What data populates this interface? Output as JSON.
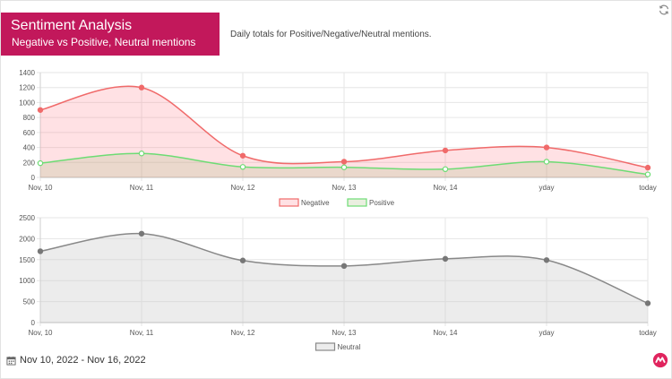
{
  "header": {
    "title": "Sentiment Analysis",
    "subtitle": "Negative vs Positive, Neutral mentions",
    "description": "Daily totals for Positive/Negative/Neutral mentions."
  },
  "footer": {
    "date_range": "Nov 10, 2022 - Nov 16, 2022"
  },
  "icons": {
    "refresh": "refresh-icon",
    "calendar": "calendar-icon",
    "logo": "brand-logo"
  },
  "colors": {
    "title_bg": "#c2185b",
    "negative": "#f06a6a",
    "positive": "#6ddc74",
    "neutral": "#888888"
  },
  "chart_data": [
    {
      "type": "line",
      "categories": [
        "Nov, 10",
        "Nov, 11",
        "Nov, 12",
        "Nov, 13",
        "Nov, 14",
        "yday",
        "today"
      ],
      "series": [
        {
          "name": "Negative",
          "values": [
            900,
            1200,
            290,
            210,
            360,
            400,
            130
          ]
        },
        {
          "name": "Positive",
          "values": [
            190,
            320,
            140,
            135,
            110,
            210,
            40
          ]
        }
      ],
      "ylim": [
        0,
        1400
      ],
      "yticks": [
        0,
        200,
        400,
        600,
        800,
        1000,
        1200,
        1400
      ],
      "grid": true,
      "legend": "bottom",
      "fill": true
    },
    {
      "type": "line",
      "categories": [
        "Nov, 10",
        "Nov, 11",
        "Nov, 12",
        "Nov, 13",
        "Nov, 14",
        "yday",
        "today"
      ],
      "series": [
        {
          "name": "Neutral",
          "values": [
            1700,
            2120,
            1480,
            1350,
            1520,
            1490,
            460
          ]
        }
      ],
      "ylim": [
        0,
        2500
      ],
      "yticks": [
        0,
        500,
        1000,
        1500,
        2000,
        2500
      ],
      "grid": true,
      "legend": "bottom",
      "fill": true
    }
  ]
}
